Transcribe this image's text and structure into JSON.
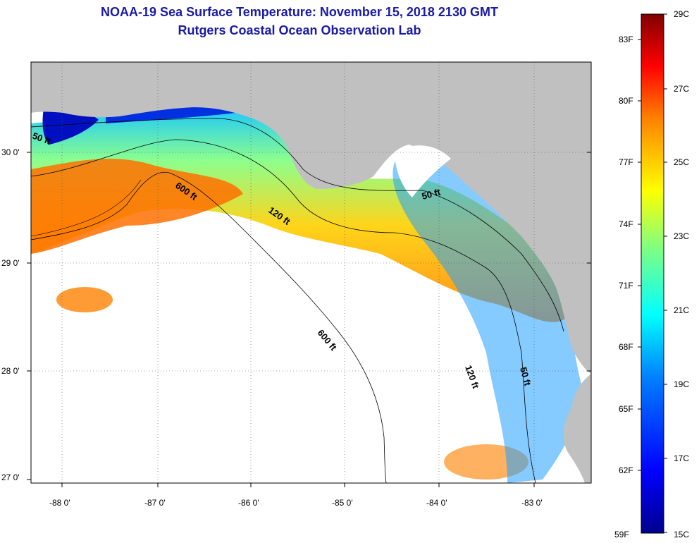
{
  "title": {
    "line1": "NOAA-19 Sea Surface Temperature:  November 15, 2018 2130 GMT",
    "line2": "Rutgers Coastal Ocean Observation Lab"
  },
  "map": {
    "lat_labels": [
      "30 0'",
      "29 0'",
      "28 0'",
      "27 0'"
    ],
    "lon_labels": [
      "-88 0'",
      "-87 0'",
      "-86 0'",
      "-85 0'",
      "-84 0'",
      "-83 0'"
    ],
    "contours": [
      "50 ft",
      "600 ft",
      "120 ft",
      "50 ft",
      "600 ft",
      "120 ft",
      "50 ft"
    ]
  },
  "colorbar": {
    "fahrenheit_labels": [
      "83F",
      "80F",
      "77F",
      "74F",
      "71F",
      "68F",
      "65F",
      "62F",
      "59F"
    ],
    "celsius_labels": [
      "29C",
      "27C",
      "25C",
      "23C",
      "21C",
      "19C",
      "17C",
      "15C"
    ],
    "gradient": [
      "#00008f",
      "#0000ff",
      "#0080ff",
      "#00ffff",
      "#80ff80",
      "#ffff00",
      "#ff8000",
      "#ff0000",
      "#800000"
    ]
  },
  "colors": {
    "land": "#c0c0c0",
    "title_text": "#1a1aa6"
  }
}
